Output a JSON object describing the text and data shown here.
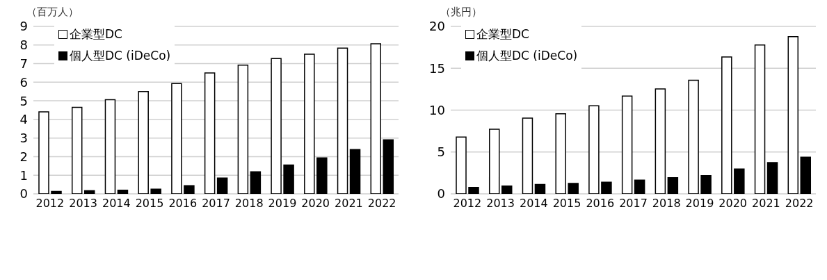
{
  "chart_data": [
    {
      "type": "bar",
      "ylabel": "（百万人）",
      "categories": [
        "2012",
        "2013",
        "2014",
        "2015",
        "2016",
        "2017",
        "2018",
        "2019",
        "2020",
        "2021",
        "2022"
      ],
      "series": [
        {
          "name": "企業型DC",
          "color": "#ffffff",
          "values": [
            4.41,
            4.65,
            5.06,
            5.5,
            5.93,
            6.5,
            6.92,
            7.27,
            7.51,
            7.83,
            8.07
          ]
        },
        {
          "name": "個人型DC (iDeCo)",
          "color": "#000000",
          "values": [
            0.13,
            0.17,
            0.2,
            0.25,
            0.44,
            0.85,
            1.19,
            1.55,
            1.93,
            2.38,
            2.9
          ]
        }
      ],
      "ylim": [
        0,
        9
      ],
      "yticks": [
        0,
        1,
        2,
        3,
        4,
        5,
        6,
        7,
        8,
        9
      ],
      "grid": "y",
      "legend": "top left"
    },
    {
      "type": "bar",
      "ylabel": "（兆円）",
      "categories": [
        "2012",
        "2013",
        "2014",
        "2015",
        "2016",
        "2017",
        "2018",
        "2019",
        "2020",
        "2021",
        "2022"
      ],
      "series": [
        {
          "name": "企業型DC",
          "color": "#ffffff",
          "values": [
            6.78,
            7.71,
            9.05,
            9.56,
            10.51,
            11.69,
            12.53,
            13.56,
            16.34,
            17.77,
            18.78
          ]
        },
        {
          "name": "個人型DC (iDeCo)",
          "color": "#000000",
          "values": [
            0.77,
            0.93,
            1.13,
            1.25,
            1.39,
            1.63,
            1.92,
            2.18,
            2.97,
            3.74,
            4.38
          ]
        }
      ],
      "ylim": [
        0,
        20
      ],
      "yticks": [
        0,
        5,
        10,
        15,
        20
      ],
      "grid": "y",
      "legend": "top left"
    }
  ]
}
